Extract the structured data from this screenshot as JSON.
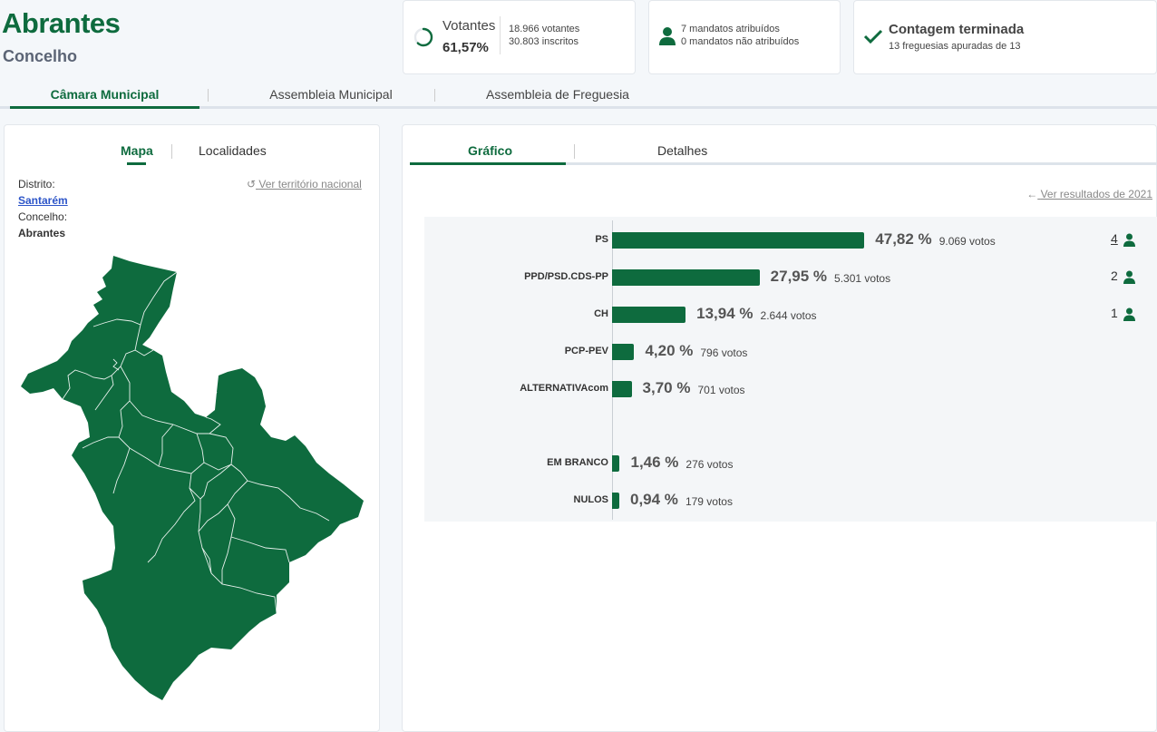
{
  "header": {
    "title": "Abrantes",
    "subtitle": "Concelho"
  },
  "votantes": {
    "label": "Votantes",
    "pct": "61,57%",
    "votantes": "18.966 votantes",
    "inscritos": "30.803 inscritos",
    "progress": 0.6157
  },
  "mandatos": {
    "atribuidos": "7 mandatos atribuídos",
    "nao_atribuidos": "0 mandatos não atribuídos",
    "icon": "person-icon"
  },
  "contagem": {
    "title": "Contagem terminada",
    "sub": "13 freguesias apuradas de 13",
    "icon": "check-icon"
  },
  "main_tabs": [
    {
      "label": "Câmara Municipal",
      "active": true
    },
    {
      "label": "Assembleia Municipal",
      "active": false
    },
    {
      "label": "Assembleia de Freguesia",
      "active": false
    }
  ],
  "left": {
    "tabs": [
      {
        "label": "Mapa",
        "active": true
      },
      {
        "label": "Localidades",
        "active": false
      }
    ],
    "distrito_label": "Distrito:",
    "distrito_value": "Santarém",
    "concelho_label": "Concelho:",
    "concelho_value": "Abrantes",
    "ver_territorio": "Ver território nacional",
    "map_color": "#0e6b3e"
  },
  "right": {
    "tabs": [
      {
        "label": "Gráfico",
        "active": true
      },
      {
        "label": "Detalhes",
        "active": false
      }
    ],
    "ver_resultados": "Ver resultados de 2021"
  },
  "chart_data": {
    "type": "bar",
    "orientation": "horizontal",
    "bar_color": "#0e6b3e",
    "xlim": [
      0,
      100
    ],
    "parties": [
      {
        "name": "PS",
        "pct": 47.82,
        "pct_label": "47,82 %",
        "votes_label": "9.069 votos",
        "mandates": "4",
        "mandates_link": true
      },
      {
        "name": "PPD/PSD.CDS-PP",
        "pct": 27.95,
        "pct_label": "27,95 %",
        "votes_label": "5.301 votos",
        "mandates": "2",
        "mandates_link": false
      },
      {
        "name": "CH",
        "pct": 13.94,
        "pct_label": "13,94 %",
        "votes_label": "2.644 votos",
        "mandates": "1",
        "mandates_link": false
      },
      {
        "name": "PCP-PEV",
        "pct": 4.2,
        "pct_label": "4,20 %",
        "votes_label": "796 votos",
        "mandates": "",
        "mandates_link": false
      },
      {
        "name": "ALTERNATIVAcom",
        "pct": 3.7,
        "pct_label": "3,70 %",
        "votes_label": "701 votos",
        "mandates": "",
        "mandates_link": false
      }
    ],
    "others": [
      {
        "name": "EM BRANCO",
        "pct": 1.46,
        "pct_label": "1,46 %",
        "votes_label": "276 votos"
      },
      {
        "name": "NULOS",
        "pct": 0.94,
        "pct_label": "0,94 %",
        "votes_label": "179 votos"
      }
    ]
  }
}
